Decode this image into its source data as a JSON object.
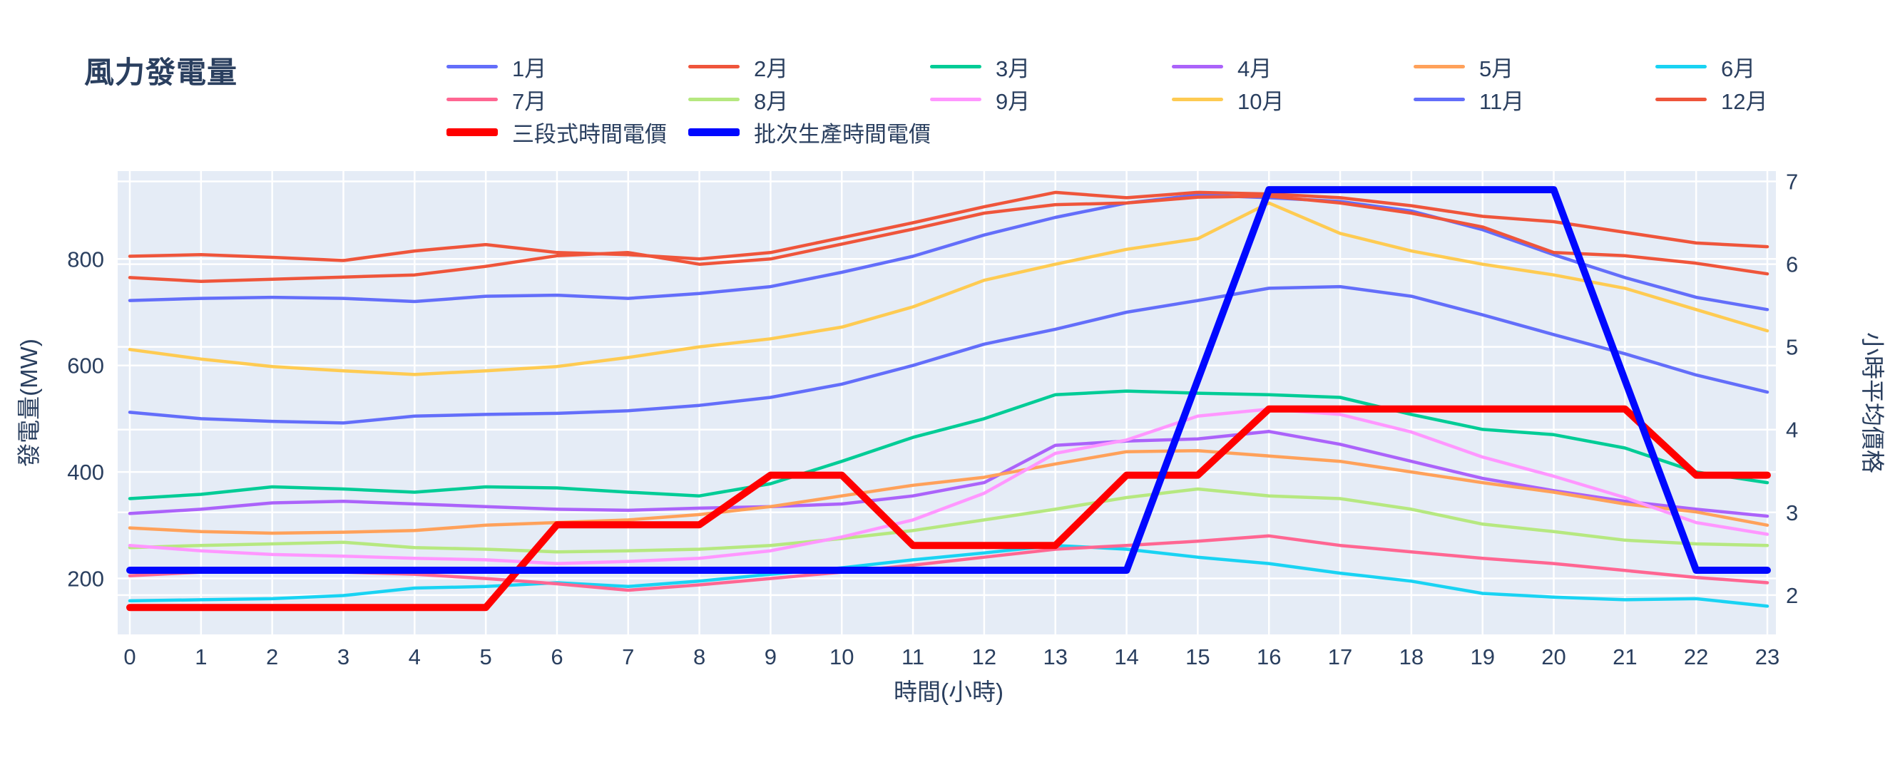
{
  "title": {
    "text": "風力發電量"
  },
  "colors": {
    "text": "#2a3f5f",
    "page_bg": "#ffffff",
    "plot_bg": "#e5ecf6",
    "grid": "#ffffff"
  },
  "chart_data": {
    "type": "line",
    "title": "風力發電量",
    "xlabel": "時間(小時)",
    "ylabel_left": "發電量(MW)",
    "ylabel_right": "小時平均價格",
    "x": [
      0,
      1,
      2,
      3,
      4,
      5,
      6,
      7,
      8,
      9,
      10,
      11,
      12,
      13,
      14,
      15,
      16,
      17,
      18,
      19,
      20,
      21,
      22,
      23
    ],
    "x_ticks": [
      0,
      1,
      2,
      3,
      4,
      5,
      6,
      7,
      8,
      9,
      10,
      11,
      12,
      13,
      14,
      15,
      16,
      17,
      18,
      19,
      20,
      21,
      22,
      23
    ],
    "y_left_ticks": [
      200,
      400,
      600,
      800
    ],
    "y_left_range": [
      95,
      965
    ],
    "y_right_ticks": [
      2,
      3,
      4,
      5,
      6,
      7
    ],
    "y_right_range": [
      1.525,
      7.125
    ],
    "grid": true,
    "legend_position": "top",
    "series": [
      {
        "name": "1月",
        "color": "#636efa",
        "axis": "left",
        "line_width": 4.5,
        "values": [
          722,
          726,
          728,
          726,
          720,
          730,
          732,
          726,
          735,
          748,
          775,
          805,
          845,
          878,
          905,
          920,
          915,
          908,
          890,
          855,
          808,
          765,
          728,
          705
        ]
      },
      {
        "name": "2月",
        "color": "#ef553b",
        "axis": "left",
        "line_width": 4.5,
        "values": [
          765,
          758,
          762,
          766,
          770,
          786,
          806,
          812,
          790,
          800,
          828,
          856,
          886,
          902,
          905,
          916,
          918,
          905,
          886,
          860,
          812,
          806,
          792,
          772
        ]
      },
      {
        "name": "3月",
        "color": "#00cc96",
        "axis": "left",
        "line_width": 4.5,
        "values": [
          350,
          358,
          372,
          368,
          362,
          372,
          370,
          362,
          355,
          378,
          420,
          465,
          500,
          545,
          552,
          548,
          545,
          540,
          508,
          480,
          470,
          445,
          400,
          380
        ]
      },
      {
        "name": "4月",
        "color": "#ab63fa",
        "axis": "left",
        "line_width": 4.5,
        "values": [
          322,
          330,
          342,
          345,
          340,
          335,
          330,
          328,
          332,
          335,
          340,
          355,
          380,
          450,
          458,
          462,
          476,
          452,
          420,
          388,
          365,
          345,
          330,
          317
        ]
      },
      {
        "name": "5月",
        "color": "#ffa15a",
        "axis": "left",
        "line_width": 4.5,
        "values": [
          295,
          288,
          285,
          287,
          290,
          300,
          305,
          310,
          320,
          335,
          355,
          375,
          390,
          415,
          438,
          440,
          430,
          420,
          400,
          380,
          362,
          340,
          325,
          300
        ]
      },
      {
        "name": "6月",
        "color": "#19d3f3",
        "axis": "left",
        "line_width": 4.5,
        "values": [
          158,
          160,
          162,
          168,
          182,
          185,
          192,
          185,
          195,
          208,
          220,
          235,
          248,
          262,
          255,
          240,
          228,
          210,
          195,
          172,
          165,
          160,
          162,
          148
        ]
      },
      {
        "name": "7月",
        "color": "#ff6692",
        "axis": "left",
        "line_width": 4.5,
        "values": [
          205,
          212,
          215,
          212,
          208,
          200,
          190,
          178,
          188,
          200,
          212,
          225,
          240,
          255,
          262,
          270,
          280,
          262,
          250,
          238,
          228,
          215,
          202,
          192
        ]
      },
      {
        "name": "8月",
        "color": "#b6e880",
        "axis": "left",
        "line_width": 4.5,
        "values": [
          258,
          262,
          265,
          268,
          258,
          255,
          250,
          252,
          255,
          262,
          275,
          290,
          310,
          330,
          352,
          368,
          355,
          350,
          330,
          302,
          288,
          272,
          265,
          262
        ]
      },
      {
        "name": "9月",
        "color": "#ff97ff",
        "axis": "left",
        "line_width": 4.5,
        "values": [
          262,
          252,
          245,
          242,
          238,
          235,
          228,
          232,
          238,
          252,
          278,
          310,
          360,
          435,
          460,
          505,
          518,
          508,
          475,
          428,
          392,
          352,
          305,
          283
        ]
      },
      {
        "name": "10月",
        "color": "#fecb52",
        "axis": "left",
        "line_width": 4.5,
        "values": [
          630,
          612,
          598,
          590,
          583,
          590,
          598,
          615,
          635,
          650,
          672,
          710,
          760,
          790,
          818,
          838,
          905,
          848,
          815,
          790,
          770,
          745,
          705,
          665
        ]
      },
      {
        "name": "11月",
        "color": "#636efa",
        "axis": "left",
        "line_width": 4.5,
        "values": [
          512,
          500,
          495,
          492,
          505,
          508,
          510,
          515,
          525,
          540,
          565,
          600,
          640,
          668,
          700,
          722,
          745,
          748,
          730,
          695,
          658,
          622,
          582,
          550
        ]
      },
      {
        "name": "12月",
        "color": "#ef553b",
        "axis": "left",
        "line_width": 4.5,
        "values": [
          805,
          808,
          803,
          797,
          815,
          827,
          812,
          808,
          800,
          812,
          840,
          868,
          898,
          925,
          915,
          925,
          922,
          915,
          900,
          880,
          870,
          850,
          830,
          823
        ]
      },
      {
        "name": "三段式時間電價",
        "color": "#ff0000",
        "axis": "right",
        "line_width": 10,
        "values": [
          1.85,
          1.85,
          1.85,
          1.85,
          1.85,
          1.85,
          2.85,
          2.85,
          2.85,
          3.45,
          3.45,
          2.6,
          2.6,
          2.6,
          3.45,
          3.45,
          4.25,
          4.25,
          4.25,
          4.25,
          4.25,
          4.25,
          3.45,
          3.45
        ]
      },
      {
        "name": "批次生產時間電價",
        "color": "#0008ff",
        "axis": "right",
        "line_width": 10,
        "values": [
          2.3,
          2.3,
          2.3,
          2.3,
          2.3,
          2.3,
          2.3,
          2.3,
          2.3,
          2.3,
          2.3,
          2.3,
          2.3,
          2.3,
          2.3,
          4.6,
          6.9,
          6.9,
          6.9,
          6.9,
          6.9,
          4.6,
          2.3,
          2.3
        ]
      }
    ]
  }
}
